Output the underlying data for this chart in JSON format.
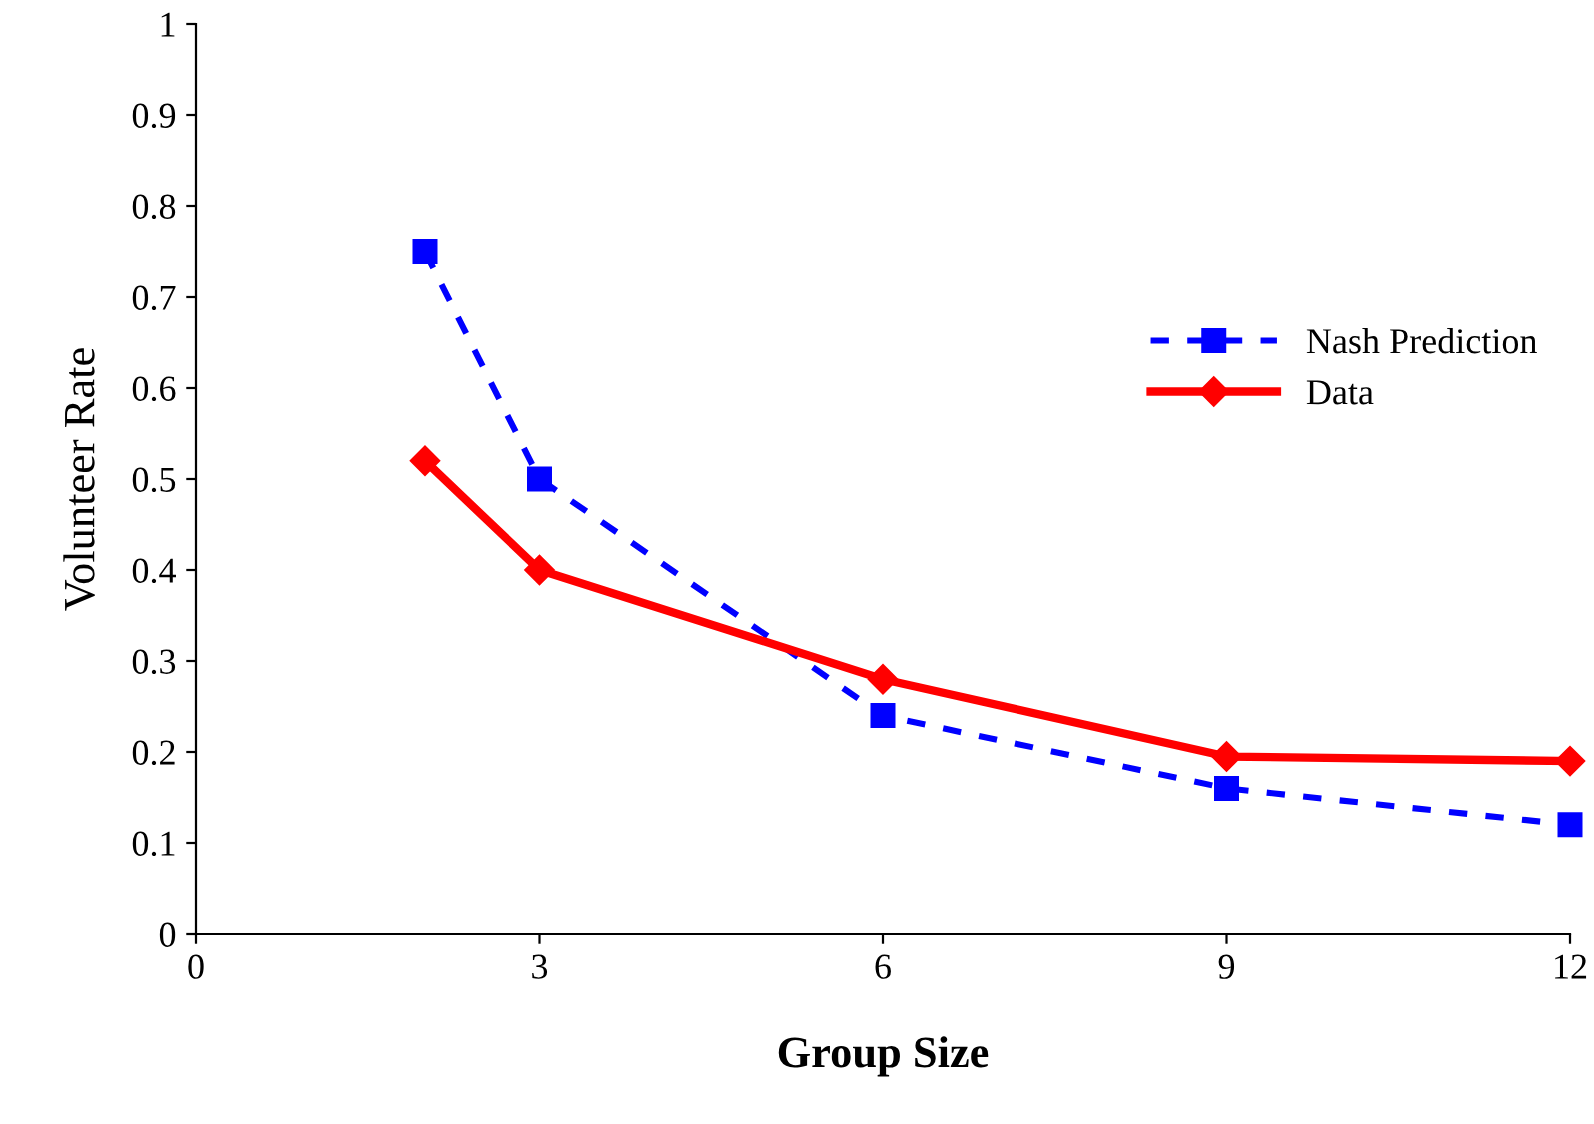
{
  "chart_data": {
    "type": "line",
    "xlabel": "Group Size",
    "ylabel": "Volunteer Rate",
    "x": [
      2,
      3,
      6,
      9,
      12
    ],
    "series": [
      {
        "name": "Nash Prediction",
        "color": "#0000ff",
        "values": [
          0.75,
          0.5,
          0.24,
          0.16,
          0.12
        ],
        "marker": "square",
        "line_style": "dashed"
      },
      {
        "name": "Data",
        "color": "#ff0000",
        "values": [
          0.52,
          0.4,
          0.28,
          0.195,
          0.19
        ],
        "marker": "diamond",
        "line_style": "solid"
      }
    ],
    "xlim": [
      0,
      12
    ],
    "xticks": [
      0,
      3,
      6,
      9,
      12
    ],
    "ylim": [
      0,
      1
    ],
    "yticks": [
      0,
      0.1,
      0.2,
      0.3,
      0.4,
      0.5,
      0.6,
      0.7,
      0.8,
      0.9,
      1
    ],
    "grid": false,
    "legend": "right"
  }
}
